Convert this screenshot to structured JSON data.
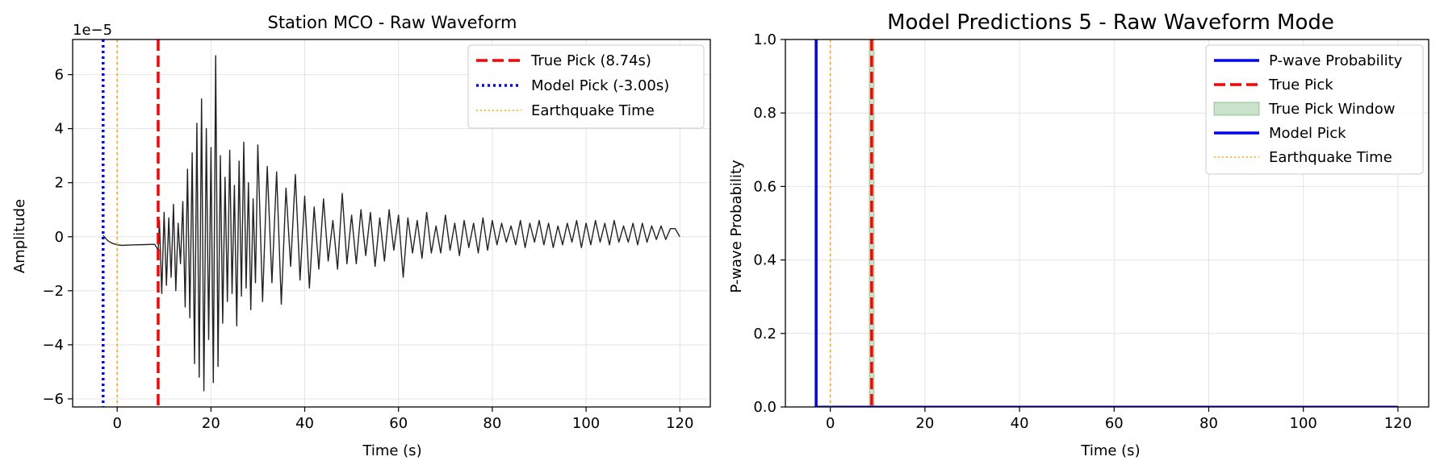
{
  "chart_data": [
    {
      "type": "line",
      "title": "Station MCO - Raw Waveform",
      "xlabel": "Time (s)",
      "ylabel": "Amplitude",
      "y_offset_text": "1e−5",
      "xlim": [
        -9.5,
        126.5
      ],
      "ylim": [
        -6.3,
        7.3
      ],
      "x_ticks": [
        0,
        20,
        40,
        60,
        80,
        100,
        120
      ],
      "x_tick_labels": [
        "0",
        "20",
        "40",
        "60",
        "80",
        "100",
        "120"
      ],
      "y_ticks": [
        -6,
        -4,
        -2,
        0,
        2,
        4,
        6
      ],
      "y_tick_labels": [
        "−6",
        "−4",
        "−2",
        "0",
        "2",
        "4",
        "6"
      ],
      "grid": true,
      "legend_position": "top-right",
      "waveform": {
        "color": "#222222",
        "x": [
          -3.0,
          -2.0,
          -1.0,
          0,
          1,
          2,
          4,
          6,
          8,
          8.74,
          9,
          9.5,
          10,
          10.5,
          11,
          11.5,
          12,
          12.5,
          13,
          13.5,
          14,
          14.5,
          15,
          15.5,
          16,
          16.5,
          17,
          17.5,
          18,
          18.5,
          19,
          19.5,
          20,
          20.5,
          21,
          21.5,
          22,
          22.5,
          23,
          23.5,
          24,
          24.5,
          25,
          25.5,
          26,
          26.5,
          27,
          27.5,
          28,
          28.5,
          29,
          29.5,
          30,
          31,
          32,
          33,
          34,
          35,
          36,
          37,
          38,
          39,
          40,
          41,
          42,
          43,
          44,
          45,
          46,
          47,
          48,
          49,
          50,
          51,
          52,
          53,
          54,
          55,
          56,
          57,
          58,
          59,
          60,
          61,
          62,
          63,
          64,
          65,
          66,
          67,
          68,
          69,
          70,
          71,
          72,
          73,
          74,
          75,
          76,
          77,
          78,
          79,
          80,
          81,
          82,
          83,
          84,
          85,
          86,
          87,
          88,
          89,
          90,
          91,
          92,
          93,
          94,
          95,
          96,
          97,
          98,
          99,
          100,
          101,
          102,
          103,
          104,
          105,
          106,
          107,
          108,
          109,
          110,
          111,
          112,
          113,
          114,
          115,
          116,
          117,
          118,
          119,
          120
        ],
        "y": [
          0.05,
          -0.15,
          -0.25,
          -0.3,
          -0.32,
          -0.31,
          -0.3,
          -0.29,
          -0.28,
          -0.5,
          0.6,
          -2.1,
          0.9,
          -1.8,
          0.7,
          -1.5,
          1.2,
          -2.0,
          0.5,
          -1.0,
          1.3,
          -2.6,
          2.5,
          -3.0,
          3.1,
          -4.7,
          4.2,
          -5.2,
          5.1,
          -5.7,
          4.0,
          -3.8,
          3.3,
          -5.4,
          6.7,
          -4.8,
          3.0,
          -3.2,
          2.2,
          -2.4,
          3.2,
          -2.1,
          1.9,
          -3.3,
          2.8,
          -2.2,
          3.5,
          -1.9,
          2.0,
          -2.7,
          1.4,
          -1.7,
          3.4,
          -2.4,
          2.6,
          -1.7,
          2.4,
          -2.5,
          1.8,
          -1.1,
          2.3,
          -1.6,
          1.5,
          -1.9,
          1.1,
          -1.2,
          1.4,
          -0.9,
          0.6,
          -1.2,
          1.6,
          -1.0,
          0.8,
          -1.0,
          1.0,
          -0.7,
          0.9,
          -1.1,
          0.7,
          -0.9,
          1.0,
          -0.5,
          0.8,
          -1.5,
          0.7,
          -0.6,
          0.6,
          -0.8,
          0.9,
          -0.6,
          0.4,
          -0.6,
          0.8,
          -0.5,
          0.5,
          -0.7,
          0.6,
          -0.4,
          0.5,
          -0.6,
          0.7,
          -0.5,
          0.6,
          -0.3,
          0.5,
          -0.2,
          0.4,
          -0.3,
          0.6,
          -0.4,
          0.5,
          -0.2,
          0.6,
          -0.3,
          0.5,
          -0.4,
          0.4,
          -0.3,
          0.5,
          -0.2,
          0.6,
          -0.4,
          0.5,
          -0.3,
          0.6,
          -0.2,
          0.5,
          -0.3,
          0.6,
          -0.2,
          0.4,
          -0.2,
          0.5,
          -0.3,
          0.5,
          -0.2,
          0.4,
          -0.1,
          0.4,
          -0.1,
          0.3,
          0.3,
          0.0
        ]
      },
      "vertical_lines": [
        {
          "name": "True Pick (8.74s)",
          "x": 8.74,
          "color": "#ff0000",
          "style": "dashed",
          "width": "thick"
        },
        {
          "name": "Model Pick (-3.00s)",
          "x": -3.0,
          "color": "#0000ff",
          "style": "dotted",
          "width": "thick"
        },
        {
          "name": "Earthquake Time",
          "x": 0,
          "color": "#ffa500",
          "style": "dotted",
          "width": "thin"
        }
      ],
      "legend": [
        {
          "label": "True Pick (8.74s)",
          "color": "#ff0000",
          "style": "dashed"
        },
        {
          "label": "Model Pick (-3.00s)",
          "color": "#0000ff",
          "style": "dotted"
        },
        {
          "label": "Earthquake Time",
          "color": "#ffa500",
          "style": "dotted-thin"
        }
      ]
    },
    {
      "type": "line",
      "title": "Model Predictions 5 - Raw Waveform Mode",
      "xlabel": "Time (s)",
      "ylabel": "P-wave Probability",
      "xlim": [
        -9.5,
        126.5
      ],
      "ylim": [
        0,
        1
      ],
      "x_ticks": [
        0,
        20,
        40,
        60,
        80,
        100,
        120
      ],
      "x_tick_labels": [
        "0",
        "20",
        "40",
        "60",
        "80",
        "100",
        "120"
      ],
      "y_ticks": [
        0,
        0.2,
        0.4,
        0.6,
        0.8,
        1.0
      ],
      "y_tick_labels": [
        "0.0",
        "0.2",
        "0.4",
        "0.6",
        "0.8",
        "1.0"
      ],
      "grid": true,
      "legend_position": "top-right",
      "probability_series": {
        "name": "P-wave Probability",
        "color": "#0000ff",
        "x": [
          -3.0,
          -3.0,
          -3.0,
          120
        ],
        "y": [
          0,
          1,
          0,
          0
        ]
      },
      "true_pick_window": {
        "x0": 8.24,
        "x1": 9.24,
        "color": "#2e8b2e"
      },
      "vertical_lines": [
        {
          "name": "True Pick",
          "x": 8.74,
          "color": "#ff0000",
          "style": "dashed",
          "width": "thick"
        },
        {
          "name": "Model Pick",
          "x": -3.0,
          "color": "#0000ff",
          "style": "solid",
          "width": "thick"
        },
        {
          "name": "Earthquake Time",
          "x": 0,
          "color": "#ffa500",
          "style": "dotted",
          "width": "thin"
        }
      ],
      "legend": [
        {
          "label": "P-wave Probability",
          "color": "#0000ff",
          "style": "solid"
        },
        {
          "label": "True Pick",
          "color": "#ff0000",
          "style": "dashed"
        },
        {
          "label": "True Pick Window",
          "color": "#2e8b2e",
          "style": "patch"
        },
        {
          "label": "Model Pick",
          "color": "#0000ff",
          "style": "solid"
        },
        {
          "label": "Earthquake Time",
          "color": "#ffa500",
          "style": "dotted-thin"
        }
      ]
    }
  ]
}
